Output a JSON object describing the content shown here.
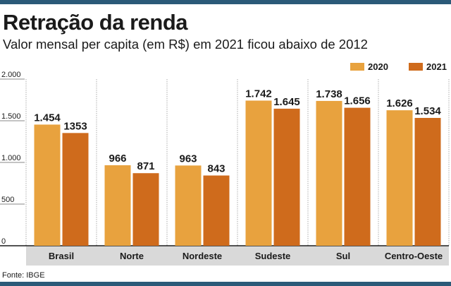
{
  "title": "Retração da renda",
  "subtitle": "Valor mensal per capita (em R$) em 2021 ficou abaixo de 2012",
  "source": "Fonte: IBGE",
  "colors": {
    "series_2020": "#e8a23e",
    "series_2021": "#cf6b1c",
    "axis_band": "#d9d9d9",
    "rules": "#2b5a78"
  },
  "chart_data": {
    "type": "bar",
    "title": "Retração da renda",
    "xlabel": "",
    "ylabel": "",
    "ylim": [
      0,
      2000
    ],
    "yticks": [
      0,
      500,
      1000,
      1500,
      2000
    ],
    "ytick_labels": [
      "0",
      "500",
      "1.000",
      "1.500",
      "2.000"
    ],
    "grid": false,
    "legend_position": "top-right",
    "categories": [
      "Brasil",
      "Norte",
      "Nordeste",
      "Sudeste",
      "Sul",
      "Centro-Oeste"
    ],
    "series": [
      {
        "name": "2020",
        "values": [
          1454,
          966,
          963,
          1742,
          1738,
          1626
        ],
        "labels": [
          "1.454",
          "966",
          "963",
          "1.742",
          "1.738",
          "1.626"
        ]
      },
      {
        "name": "2021",
        "values": [
          1353,
          871,
          843,
          1645,
          1656,
          1534
        ],
        "labels": [
          "1353",
          "871",
          "843",
          "1.645",
          "1.656",
          "1.534"
        ]
      }
    ]
  }
}
